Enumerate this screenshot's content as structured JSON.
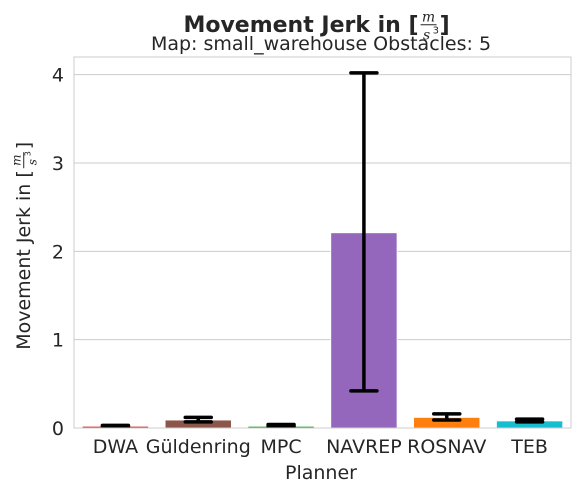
{
  "chart_data": {
    "type": "bar",
    "title": "Movement Jerk in [",
    "title_unit": {
      "numerator": "m",
      "denominator": "s",
      "exponent": "3",
      "close": "]"
    },
    "subtitle": "Map: small_warehouse Obstacles: 5",
    "xlabel": "Planner",
    "ylabel": "Movement Jerk in [",
    "ylabel_unit": {
      "numerator": "m",
      "denominator": "s",
      "exponent": "3",
      "close": "]"
    },
    "ylim": [
      0,
      4.2
    ],
    "yticks": [
      "0",
      "1",
      "2",
      "3",
      "4"
    ],
    "grid": true,
    "categories": [
      "DWA",
      "Güldenring",
      "MPC",
      "NAVREP",
      "ROSNAV",
      "TEB"
    ],
    "values": [
      0.02,
      0.09,
      0.02,
      2.21,
      0.12,
      0.08
    ],
    "error_low": [
      0.02,
      0.07,
      0.02,
      0.42,
      0.09,
      0.07
    ],
    "error_high": [
      0.03,
      0.12,
      0.04,
      4.02,
      0.16,
      0.1
    ],
    "colors": [
      "#d62728",
      "#8c564b",
      "#2ca02c",
      "#9467bd",
      "#ff7f0e",
      "#17becf"
    ]
  }
}
